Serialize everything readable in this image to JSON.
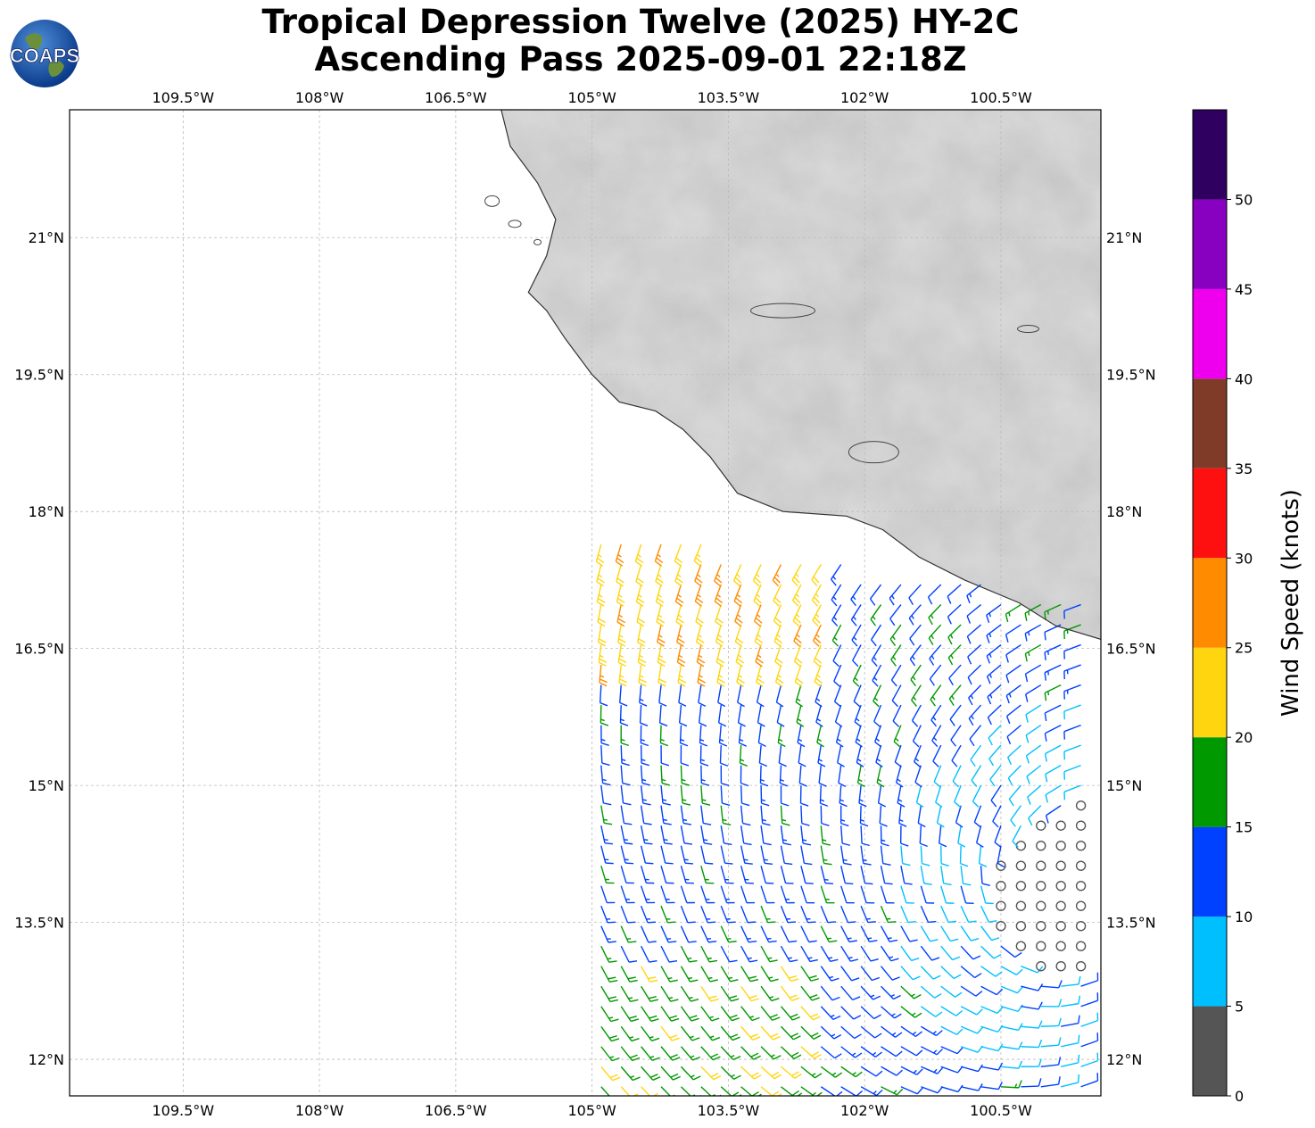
{
  "title": {
    "line1": "Tropical Depression Twelve (2025) HY-2C",
    "line2": "Ascending Pass 2025-09-01 22:18Z"
  },
  "logo": {
    "text": "COAPS",
    "icon": "globe-logo-icon"
  },
  "map": {
    "lon_range": [
      -110.75,
      -99.4
    ],
    "lat_range": [
      11.6,
      22.4
    ],
    "lon_ticks": [
      {
        "value": -109.5,
        "label": "109.5°W"
      },
      {
        "value": -108,
        "label": "108°W"
      },
      {
        "value": -106.5,
        "label": "106.5°W"
      },
      {
        "value": -105,
        "label": "105°W"
      },
      {
        "value": -103.5,
        "label": "103.5°W"
      },
      {
        "value": -102,
        "label": "102°W"
      },
      {
        "value": -100.5,
        "label": "100.5°W"
      }
    ],
    "lat_ticks": [
      {
        "value": 21,
        "label": "21°N"
      },
      {
        "value": 19.5,
        "label": "19.5°N"
      },
      {
        "value": 18,
        "label": "18°N"
      },
      {
        "value": 16.5,
        "label": "16.5°N"
      },
      {
        "value": 15,
        "label": "15°N"
      },
      {
        "value": 13.5,
        "label": "13.5°N"
      },
      {
        "value": 12,
        "label": "12°N"
      }
    ],
    "grid": true,
    "land_shading": "grayscale elevation",
    "coastline": [
      [
        -106.0,
        22.4
      ],
      [
        -105.9,
        22.0
      ],
      [
        -105.6,
        21.6
      ],
      [
        -105.4,
        21.2
      ],
      [
        -105.5,
        20.8
      ],
      [
        -105.7,
        20.4
      ],
      [
        -105.5,
        20.2
      ],
      [
        -105.3,
        19.9
      ],
      [
        -105.0,
        19.5
      ],
      [
        -104.7,
        19.2
      ],
      [
        -104.3,
        19.1
      ],
      [
        -104.0,
        18.9
      ],
      [
        -103.7,
        18.6
      ],
      [
        -103.4,
        18.2
      ],
      [
        -102.9,
        18.0
      ],
      [
        -102.2,
        17.95
      ],
      [
        -101.8,
        17.8
      ],
      [
        -101.4,
        17.5
      ],
      [
        -100.9,
        17.25
      ],
      [
        -100.3,
        17.0
      ],
      [
        -99.9,
        16.75
      ],
      [
        -99.4,
        16.6
      ]
    ]
  },
  "colorbar": {
    "label": "Wind Speed (knots)",
    "tick_labels": [
      "0",
      "5",
      "10",
      "15",
      "20",
      "25",
      "30",
      "35",
      "40",
      "45",
      "50"
    ],
    "colors": [
      "#555555",
      "#00bfff",
      "#0040ff",
      "#009900",
      "#ffd510",
      "#ff8c00",
      "#ff1010",
      "#803a28",
      "#ee00ee",
      "#8800c0",
      "#300060"
    ],
    "range": [
      0,
      55
    ]
  }
}
